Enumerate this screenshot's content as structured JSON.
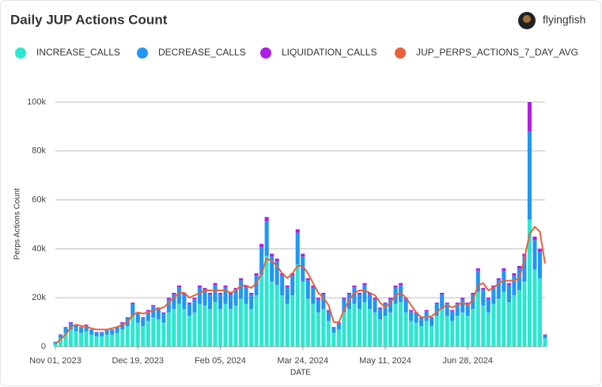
{
  "author": "flyingfish",
  "chart_data": {
    "type": "bar",
    "stacked": true,
    "title": "Daily JUP Actions Count",
    "x_label": "DATE",
    "y_label": "Perps Actions Count",
    "x": [
      "2023-11-01",
      "2023-11-04",
      "2023-11-07",
      "2023-11-10",
      "2023-11-13",
      "2023-11-16",
      "2023-11-19",
      "2023-11-22",
      "2023-11-25",
      "2023-11-28",
      "2023-12-01",
      "2023-12-04",
      "2023-12-07",
      "2023-12-10",
      "2023-12-13",
      "2023-12-16",
      "2023-12-19",
      "2023-12-22",
      "2023-12-25",
      "2023-12-28",
      "2023-12-31",
      "2024-01-03",
      "2024-01-06",
      "2024-01-09",
      "2024-01-12",
      "2024-01-15",
      "2024-01-18",
      "2024-01-21",
      "2024-01-24",
      "2024-01-27",
      "2024-01-30",
      "2024-02-02",
      "2024-02-05",
      "2024-02-08",
      "2024-02-11",
      "2024-02-14",
      "2024-02-17",
      "2024-02-20",
      "2024-02-23",
      "2024-02-26",
      "2024-02-29",
      "2024-03-03",
      "2024-03-06",
      "2024-03-09",
      "2024-03-12",
      "2024-03-15",
      "2024-03-18",
      "2024-03-21",
      "2024-03-24",
      "2024-03-27",
      "2024-03-30",
      "2024-04-02",
      "2024-04-05",
      "2024-04-08",
      "2024-04-11",
      "2024-04-14",
      "2024-04-17",
      "2024-04-20",
      "2024-04-23",
      "2024-04-26",
      "2024-04-29",
      "2024-05-02",
      "2024-05-05",
      "2024-05-08",
      "2024-05-11",
      "2024-05-14",
      "2024-05-17",
      "2024-05-20",
      "2024-05-23",
      "2024-05-26",
      "2024-05-29",
      "2024-06-01",
      "2024-06-04",
      "2024-06-07",
      "2024-06-10",
      "2024-06-13",
      "2024-06-16",
      "2024-06-19",
      "2024-06-22",
      "2024-06-25",
      "2024-06-28",
      "2024-07-01",
      "2024-07-04",
      "2024-07-07",
      "2024-07-10",
      "2024-07-13",
      "2024-07-16",
      "2024-07-19",
      "2024-07-22",
      "2024-07-25",
      "2024-07-28",
      "2024-07-31",
      "2024-08-03",
      "2024-08-06",
      "2024-08-09",
      "2024-08-12"
    ],
    "series": [
      {
        "name": "INCREASE_CALLS",
        "color": "#2ee6cf",
        "values": [
          1400,
          3500,
          5600,
          7000,
          6300,
          5600,
          6300,
          4900,
          4200,
          4200,
          4900,
          4900,
          5600,
          7000,
          8400,
          12600,
          9800,
          8400,
          10500,
          11900,
          11200,
          9800,
          14000,
          15400,
          17500,
          15400,
          12600,
          14000,
          17500,
          16800,
          15400,
          18200,
          15400,
          17500,
          15400,
          16800,
          19600,
          17500,
          15400,
          21000,
          29400,
          37100,
          26600,
          25200,
          21000,
          17500,
          21000,
          33600,
          26600,
          19600,
          17500,
          14000,
          15400,
          10500,
          5600,
          7000,
          14000,
          15400,
          17500,
          15400,
          18200,
          15400,
          14000,
          11200,
          12600,
          14000,
          17500,
          18200,
          14000,
          10500,
          9800,
          8400,
          10500,
          8400,
          12600,
          15400,
          12600,
          10500,
          12600,
          14000,
          12600,
          15400,
          22400,
          16800,
          14000,
          17500,
          19600,
          22400,
          18200,
          21000,
          23100,
          26600,
          52000,
          31500,
          28000,
          3500
        ]
      },
      {
        "name": "DECREASE_CALLS",
        "color": "#2196f3",
        "values": [
          540,
          1350,
          2160,
          2700,
          2430,
          2160,
          2430,
          1890,
          1620,
          1620,
          1890,
          1890,
          2160,
          2700,
          3240,
          4860,
          3780,
          3240,
          4050,
          4590,
          4320,
          3780,
          5400,
          5940,
          6750,
          5940,
          4860,
          5400,
          6750,
          6480,
          5940,
          7020,
          5940,
          6750,
          5940,
          6480,
          7560,
          6750,
          5940,
          8100,
          11340,
          14310,
          10260,
          9720,
          8100,
          6750,
          8100,
          12960,
          10260,
          7560,
          6750,
          5400,
          5940,
          4050,
          2160,
          2700,
          5400,
          5940,
          6750,
          5940,
          7020,
          5940,
          5400,
          4320,
          4860,
          5400,
          6750,
          7020,
          5400,
          4050,
          3780,
          3240,
          4050,
          3240,
          4860,
          5940,
          4860,
          4050,
          4860,
          5400,
          4860,
          5940,
          8640,
          6480,
          5400,
          6750,
          7560,
          8640,
          7020,
          8100,
          8910,
          10260,
          36000,
          12150,
          10800,
          1350
        ]
      },
      {
        "name": "LIQUIDATION_CALLS",
        "color": "#b01ee8",
        "values": [
          60,
          150,
          240,
          300,
          270,
          240,
          270,
          210,
          180,
          180,
          210,
          210,
          240,
          300,
          360,
          540,
          420,
          360,
          450,
          510,
          480,
          420,
          600,
          660,
          750,
          660,
          540,
          600,
          750,
          720,
          660,
          780,
          660,
          750,
          660,
          720,
          840,
          750,
          660,
          900,
          1260,
          1590,
          1140,
          1080,
          900,
          750,
          900,
          1440,
          1140,
          840,
          750,
          600,
          660,
          450,
          240,
          300,
          600,
          660,
          750,
          660,
          780,
          660,
          600,
          480,
          540,
          600,
          750,
          780,
          600,
          450,
          420,
          360,
          450,
          360,
          540,
          660,
          540,
          450,
          540,
          600,
          540,
          660,
          960,
          720,
          600,
          750,
          840,
          960,
          780,
          900,
          990,
          1140,
          12000,
          1350,
          1200,
          150
        ]
      },
      {
        "name": "JUP_PERPS_ACTIONS_7_DAY_AVG",
        "color": "#e9603c",
        "type": "line",
        "values": [
          1000,
          3000,
          5000,
          8000,
          9000,
          8500,
          8000,
          7500,
          7000,
          7000,
          7000,
          7500,
          8000,
          9000,
          10000,
          13000,
          14000,
          13500,
          14000,
          15000,
          15500,
          16000,
          18000,
          20000,
          22000,
          22000,
          20000,
          21000,
          22000,
          23000,
          23000,
          23000,
          23000,
          23000,
          22000,
          23000,
          25000,
          25000,
          24000,
          26000,
          30000,
          36000,
          35000,
          33000,
          30000,
          28000,
          30000,
          33000,
          33000,
          30000,
          26000,
          22000,
          20000,
          17000,
          10000,
          10000,
          15000,
          19000,
          22000,
          23000,
          23000,
          22000,
          21000,
          18000,
          16000,
          18000,
          21000,
          22000,
          20000,
          17000,
          14000,
          12000,
          12000,
          12500,
          14000,
          16000,
          17000,
          16000,
          17000,
          18000,
          17000,
          19000,
          25000,
          26000,
          23000,
          24000,
          26000,
          27000,
          27000,
          27000,
          28000,
          36000,
          46000,
          49000,
          47000,
          34000
        ]
      }
    ],
    "xlim": [
      "2023-11-01",
      "2024-08-12"
    ],
    "xticks": [
      {
        "value": "2023-11-01",
        "label": "Nov 01, 2023"
      },
      {
        "value": "2023-12-19",
        "label": "Dec 19, 2023"
      },
      {
        "value": "2024-02-05",
        "label": "Feb 05, 2024"
      },
      {
        "value": "2024-03-24",
        "label": "Mar 24, 2024"
      },
      {
        "value": "2024-05-11",
        "label": "May 11, 2024"
      },
      {
        "value": "2024-06-28",
        "label": "Jun 28, 2024"
      }
    ],
    "ylim": [
      0,
      100000
    ],
    "yticks": [
      0,
      {
        "value": 20000,
        "label": "20k"
      },
      {
        "value": 40000,
        "label": "40k"
      },
      {
        "value": 60000,
        "label": "60k"
      },
      {
        "value": 80000,
        "label": "80k"
      },
      {
        "value": 100000,
        "label": "100k"
      }
    ],
    "grid": true
  }
}
